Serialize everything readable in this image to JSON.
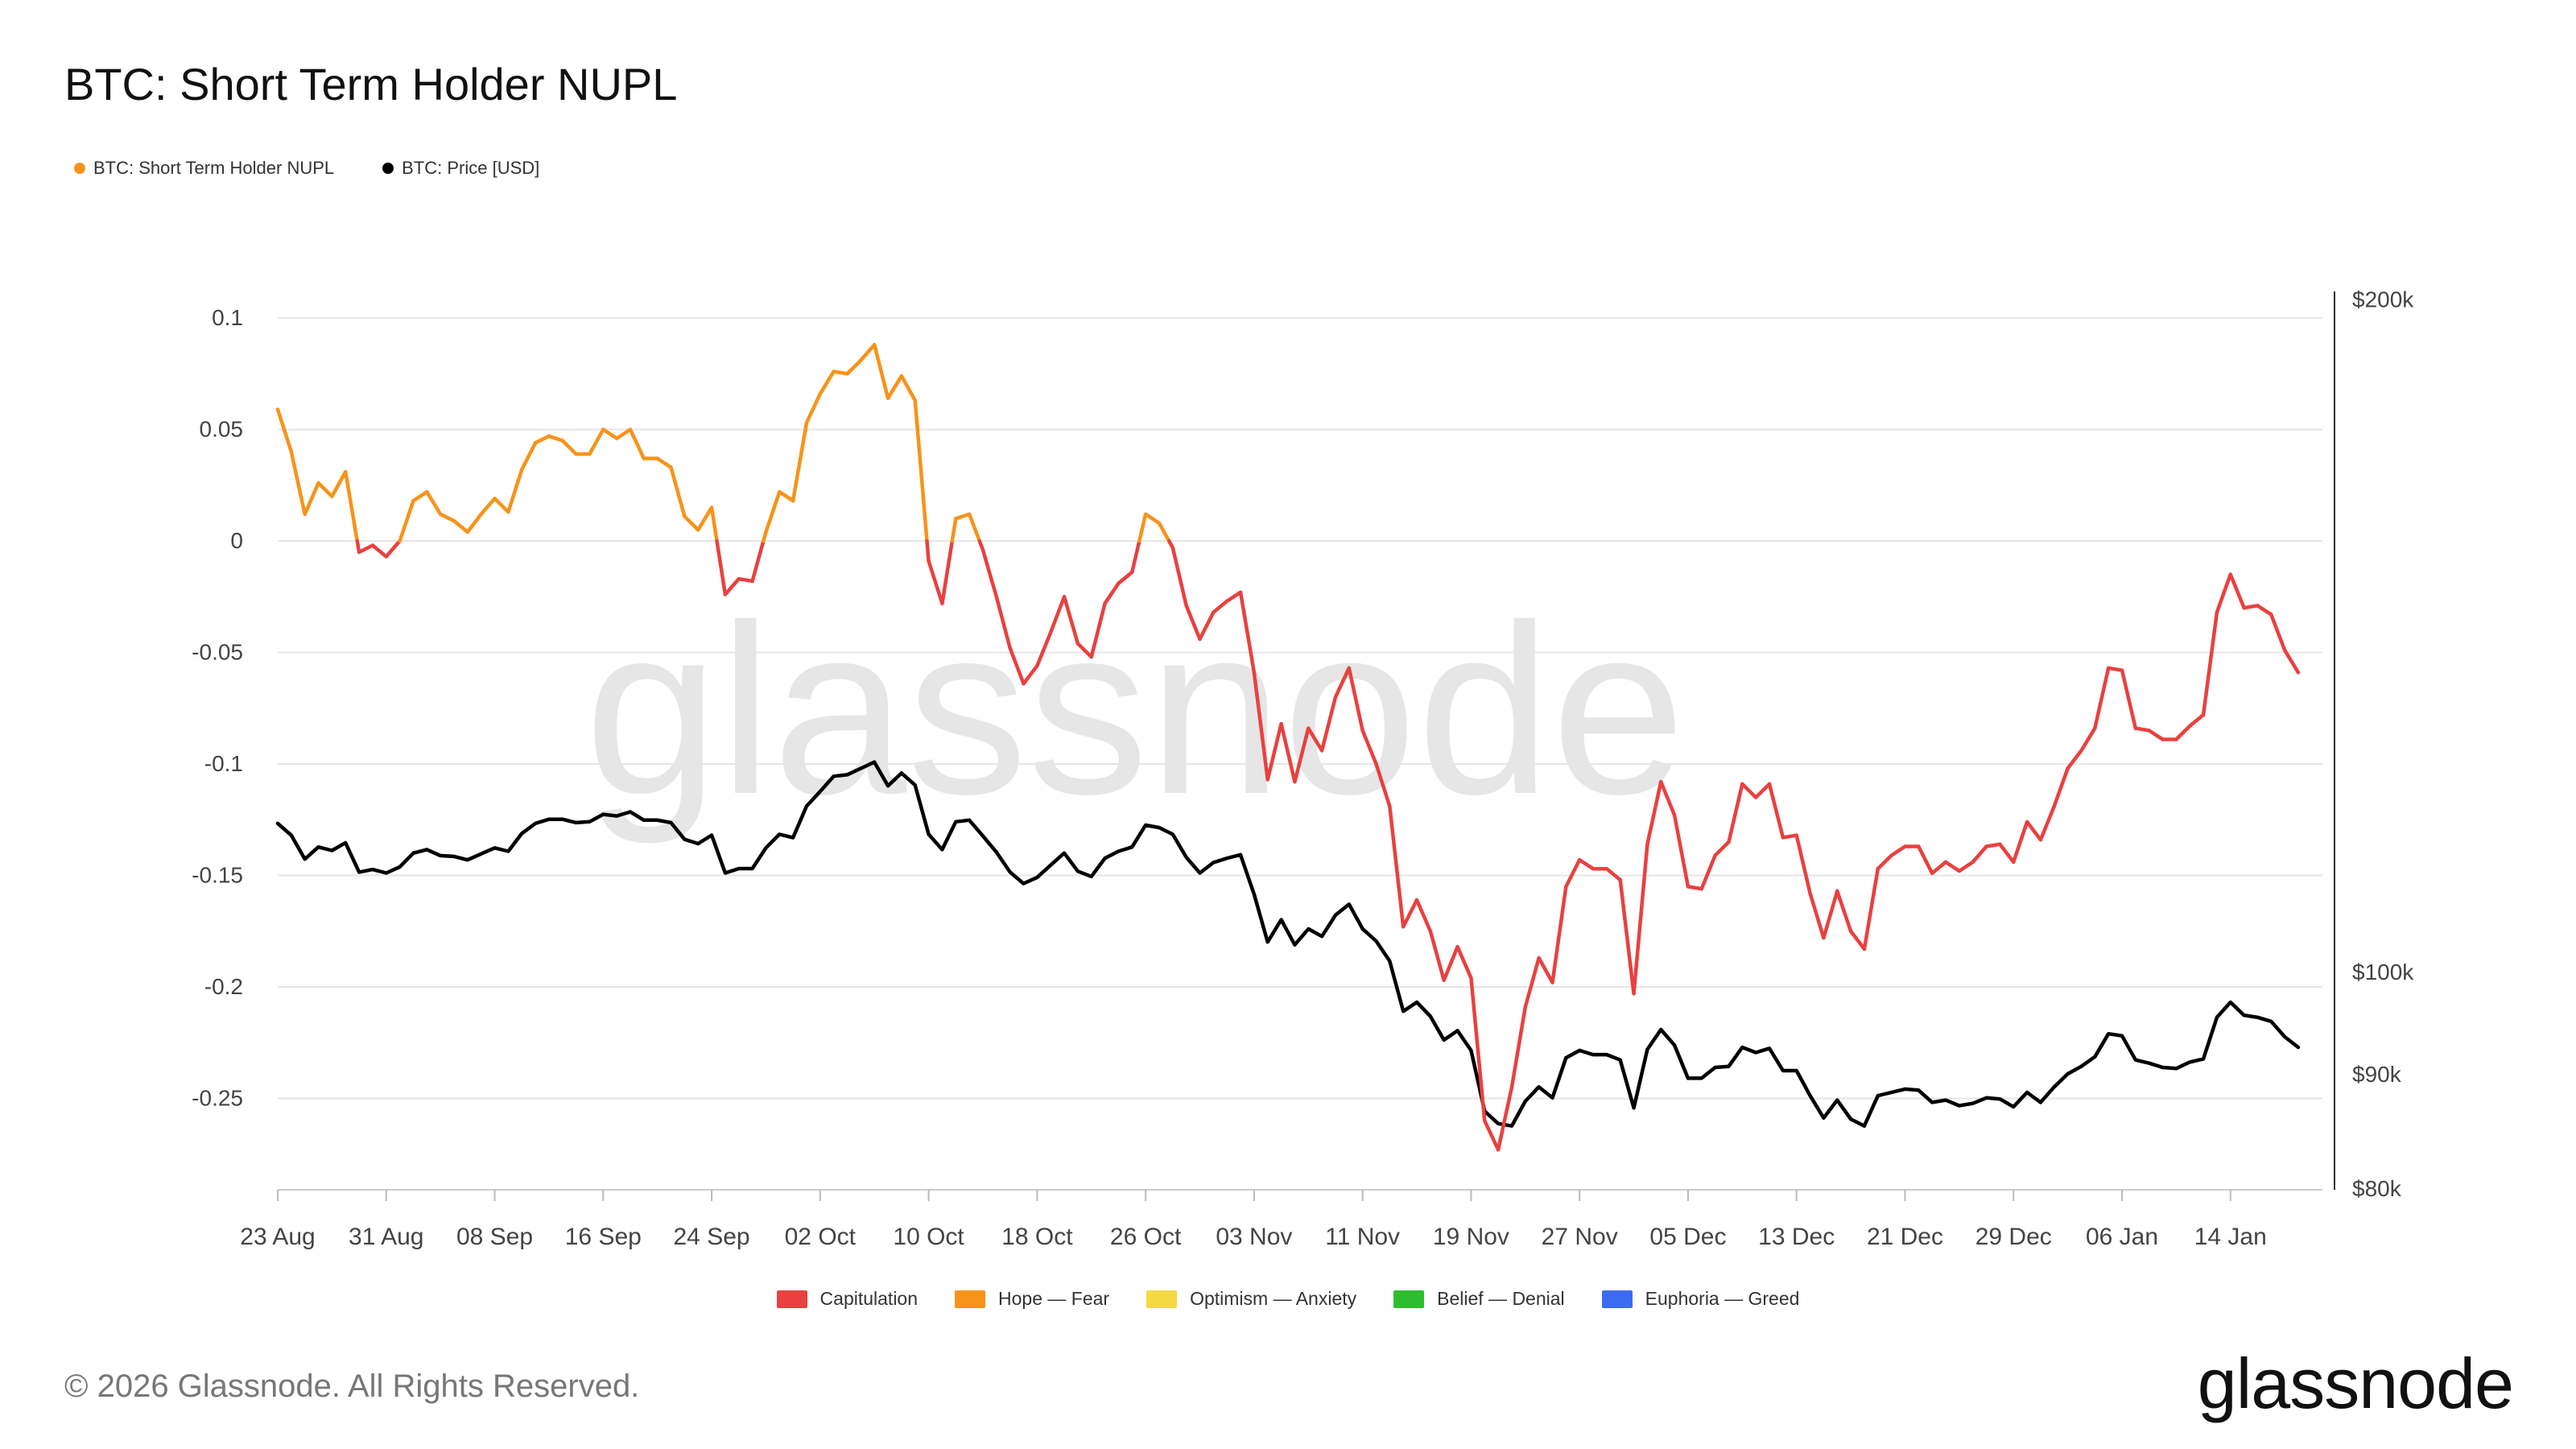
{
  "title": "BTC: Short Term Holder NUPL",
  "legend": [
    {
      "label": "BTC: Short Term Holder NUPL",
      "color": "#f7931a"
    },
    {
      "label": "BTC: Price [USD]",
      "color": "#000000"
    }
  ],
  "zones_legend": [
    {
      "label": "Capitulation",
      "color": "#e8413f"
    },
    {
      "label": "Hope — Fear",
      "color": "#f7931a"
    },
    {
      "label": "Optimism — Anxiety",
      "color": "#f4d942"
    },
    {
      "label": "Belief — Denial",
      "color": "#2ebd2e"
    },
    {
      "label": "Euphoria — Greed",
      "color": "#3b6cf0"
    }
  ],
  "watermark": "glassnode",
  "footer": {
    "copyright": "© 2026 Glassnode. All Rights Reserved.",
    "logo": "glassnode"
  },
  "chart_data": {
    "type": "line",
    "x_ticks": [
      "23 Aug",
      "31 Aug",
      "08 Sep",
      "16 Sep",
      "24 Sep",
      "02 Oct",
      "10 Oct",
      "18 Oct",
      "26 Oct",
      "03 Nov",
      "11 Nov",
      "19 Nov",
      "27 Nov",
      "05 Dec",
      "13 Dec",
      "21 Dec",
      "29 Dec",
      "06 Jan",
      "14 Jan"
    ],
    "x_start": "2025-08-23",
    "y_left": {
      "ticks": [
        0.1,
        0.05,
        0,
        -0.05,
        -0.1,
        -0.15,
        -0.2,
        -0.25
      ],
      "tick_labels": [
        "0.1",
        "0.05",
        "0",
        "-0.05",
        "-0.1",
        "-0.15",
        "-0.2",
        "-0.25"
      ],
      "range": [
        -0.29,
        0.1
      ],
      "grid": true
    },
    "y_right": {
      "scale": "log",
      "ticks": [
        200000,
        100000,
        90000,
        80000
      ],
      "tick_labels": [
        "$200k",
        "$100k",
        "$90k",
        "$80k"
      ],
      "range": [
        80000,
        200000
      ]
    },
    "nupl_color_rule": "Hope — Fear (orange) when value >= 0, Capitulation (red) when value < 0",
    "series": [
      {
        "name": "BTC: Short Term Holder NUPL",
        "axis": "left",
        "values": [
          0.059,
          0.04,
          0.012,
          0.026,
          0.02,
          0.031,
          -0.005,
          -0.002,
          -0.007,
          0.0,
          0.018,
          0.022,
          0.012,
          0.009,
          0.004,
          0.012,
          0.019,
          0.013,
          0.032,
          0.044,
          0.047,
          0.045,
          0.039,
          0.039,
          0.05,
          0.046,
          0.05,
          0.037,
          0.037,
          0.033,
          0.011,
          0.005,
          0.015,
          -0.024,
          -0.017,
          -0.018,
          0.004,
          0.022,
          0.018,
          0.053,
          0.066,
          0.076,
          0.075,
          0.081,
          0.088,
          0.064,
          0.074,
          0.063,
          -0.009,
          -0.028,
          0.01,
          0.012,
          -0.004,
          -0.025,
          -0.048,
          -0.064,
          -0.056,
          -0.041,
          -0.025,
          -0.046,
          -0.052,
          -0.028,
          -0.019,
          -0.014,
          0.012,
          0.008,
          -0.003,
          -0.029,
          -0.044,
          -0.032,
          -0.027,
          -0.023,
          -0.059,
          -0.107,
          -0.082,
          -0.108,
          -0.084,
          -0.094,
          -0.07,
          -0.057,
          -0.085,
          -0.1,
          -0.119,
          -0.173,
          -0.161,
          -0.175,
          -0.197,
          -0.182,
          -0.196,
          -0.26,
          -0.273,
          -0.245,
          -0.209,
          -0.187,
          -0.198,
          -0.155,
          -0.143,
          -0.147,
          -0.147,
          -0.152,
          -0.203,
          -0.136,
          -0.108,
          -0.123,
          -0.155,
          -0.156,
          -0.141,
          -0.135,
          -0.109,
          -0.115,
          -0.109,
          -0.133,
          -0.132,
          -0.158,
          -0.178,
          -0.157,
          -0.175,
          -0.183,
          -0.147,
          -0.141,
          -0.137,
          -0.137,
          -0.149,
          -0.144,
          -0.148,
          -0.144,
          -0.137,
          -0.136,
          -0.144,
          -0.126,
          -0.134,
          -0.119,
          -0.102,
          -0.094,
          -0.084,
          -0.057,
          -0.058,
          -0.084,
          -0.085,
          -0.089,
          -0.089,
          -0.083,
          -0.078,
          -0.032,
          -0.015,
          -0.03,
          -0.029,
          -0.033,
          -0.049,
          -0.059
        ]
      },
      {
        "name": "BTC: Price [USD]",
        "axis": "right",
        "color": "#000000",
        "values": [
          116500,
          115100,
          112300,
          113700,
          113300,
          114200,
          110800,
          111100,
          110700,
          111400,
          113000,
          113400,
          112700,
          112600,
          112200,
          112900,
          113600,
          113200,
          115300,
          116500,
          117000,
          117000,
          116600,
          116700,
          117600,
          117400,
          117900,
          116900,
          116900,
          116600,
          114600,
          114100,
          115100,
          110700,
          111200,
          111200,
          113600,
          115200,
          114800,
          118600,
          120400,
          122300,
          122500,
          123300,
          124100,
          121100,
          122700,
          121200,
          115200,
          113400,
          116700,
          116900,
          115000,
          113100,
          110800,
          109500,
          110200,
          111600,
          113000,
          110900,
          110300,
          112400,
          113200,
          113700,
          116300,
          116000,
          115200,
          112500,
          110700,
          111900,
          112400,
          112800,
          108300,
          103100,
          105500,
          102800,
          104500,
          103700,
          106000,
          107200,
          104500,
          103200,
          101100,
          96000,
          96900,
          95500,
          93200,
          94100,
          92200,
          86600,
          85500,
          85300,
          87500,
          88800,
          87800,
          91500,
          92200,
          91800,
          91800,
          91300,
          86900,
          92300,
          94200,
          92700,
          89600,
          89600,
          90600,
          90700,
          92500,
          92000,
          92400,
          90300,
          90300,
          88000,
          86000,
          87600,
          85900,
          85300,
          88000,
          88300,
          88600,
          88500,
          87400,
          87600,
          87100,
          87300,
          87800,
          87700,
          87000,
          88300,
          87400,
          88800,
          90000,
          90700,
          91600,
          93800,
          93600,
          91300,
          91000,
          90600,
          90500,
          91100,
          91400,
          95400,
          96900,
          95600,
          95400,
          95000,
          93500,
          92500
        ]
      }
    ]
  }
}
